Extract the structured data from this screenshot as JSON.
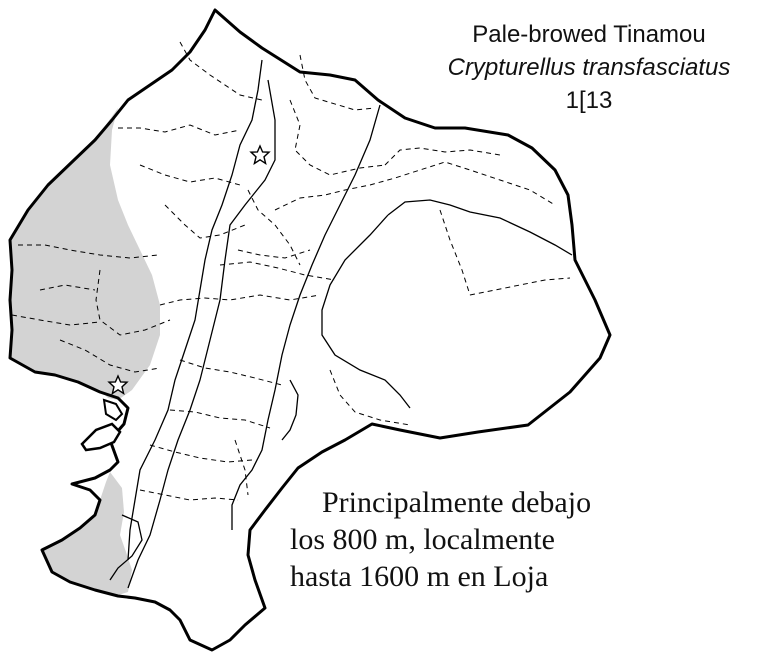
{
  "header": {
    "common_name": "Pale-browed Tinamou",
    "scientific_name": "Crypturellus transfasciatus",
    "plate_ref": "1[13"
  },
  "note": {
    "line1": "Principalmente debajo",
    "line2": "los 800 m, localmente",
    "line3": "hasta 1600 m en Loja"
  },
  "map": {
    "range_fill_color": "#d3d3d3",
    "outline_color": "#000000",
    "locality_markers": 2
  }
}
